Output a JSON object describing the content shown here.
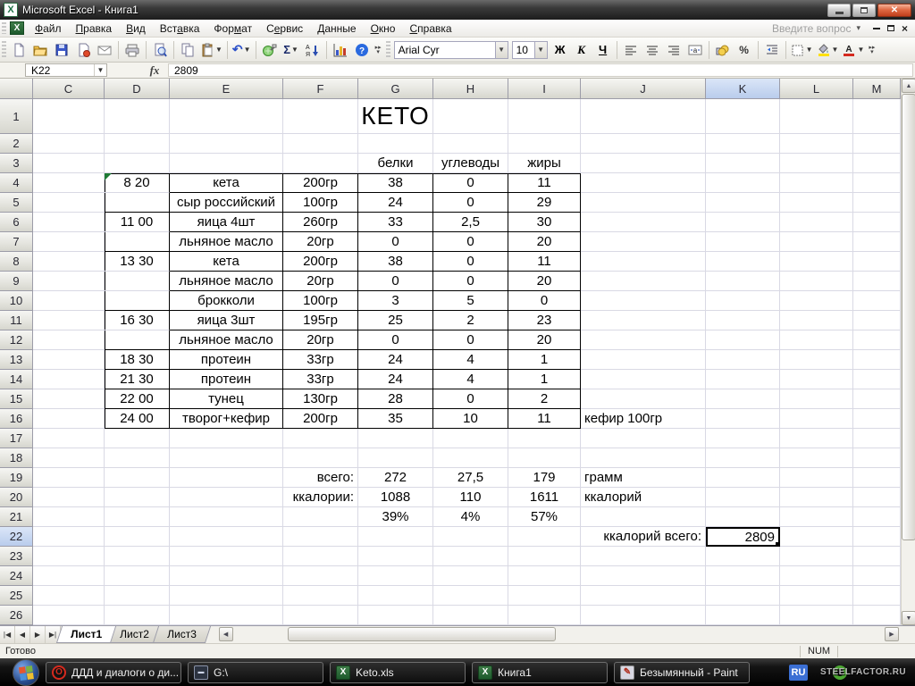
{
  "window": {
    "title": "Microsoft Excel - Книга1",
    "ask_placeholder": "Введите вопрос"
  },
  "menu": {
    "items": [
      "Файл",
      "Правка",
      "Вид",
      "Вставка",
      "Формат",
      "Сервис",
      "Данные",
      "Окно",
      "Справка"
    ]
  },
  "toolbar": {
    "standard_icons": [
      "new-document",
      "open",
      "save",
      "permission",
      "mail",
      "sep",
      "print",
      "sep",
      "print-preview",
      "sep",
      "copy",
      "paste+",
      "sep",
      "undo+",
      "sep",
      "hyperlink",
      "autosum+",
      "sort-descending",
      "sep",
      "chart-wizard",
      "help"
    ],
    "font_name": "Arial Cyr",
    "font_size": "10",
    "formatting_icons": [
      "bold",
      "italic",
      "underline",
      "sep",
      "align-left",
      "align-center",
      "align-right",
      "merge-center",
      "sep",
      "currency",
      "percent",
      "sep",
      "decrease-indent",
      "sep",
      "borders+",
      "fill-color+",
      "font-color+"
    ]
  },
  "formula_bar": {
    "name_box": "K22",
    "formula": "2809"
  },
  "sheet": {
    "column_letters": [
      "C",
      "D",
      "E",
      "F",
      "G",
      "H",
      "I",
      "J",
      "K",
      "L",
      "M"
    ],
    "selected_column": "K",
    "selected_row": 22,
    "row_count": 26,
    "title_cell": {
      "text": "КЕТО",
      "col": "G",
      "row": 1
    },
    "header_row3": {
      "G": "белки",
      "H": "углеводы",
      "I": "жиры"
    },
    "meals": [
      {
        "row": 4,
        "time": "8 20",
        "food": "кета",
        "qty": "200гр",
        "protein": "38",
        "carbs": "0",
        "fat": "11",
        "note": ""
      },
      {
        "row": 5,
        "time": "",
        "food": "сыр российский",
        "qty": "100гр",
        "protein": "24",
        "carbs": "0",
        "fat": "29",
        "note": ""
      },
      {
        "row": 6,
        "time": "11 00",
        "food": "яица 4шт",
        "qty": "260гр",
        "protein": "33",
        "carbs": "2,5",
        "fat": "30",
        "note": ""
      },
      {
        "row": 7,
        "time": "",
        "food": "льняное масло",
        "qty": "20гр",
        "protein": "0",
        "carbs": "0",
        "fat": "20",
        "note": ""
      },
      {
        "row": 8,
        "time": "13 30",
        "food": "кета",
        "qty": "200гр",
        "protein": "38",
        "carbs": "0",
        "fat": "11",
        "note": ""
      },
      {
        "row": 9,
        "time": "",
        "food": "льняное масло",
        "qty": "20гр",
        "protein": "0",
        "carbs": "0",
        "fat": "20",
        "note": ""
      },
      {
        "row": 10,
        "time": "",
        "food": "брокколи",
        "qty": "100гр",
        "protein": "3",
        "carbs": "5",
        "fat": "0",
        "note": ""
      },
      {
        "row": 11,
        "time": "16 30",
        "food": "яица 3шт",
        "qty": "195гр",
        "protein": "25",
        "carbs": "2",
        "fat": "23",
        "note": ""
      },
      {
        "row": 12,
        "time": "",
        "food": "льняное масло",
        "qty": "20гр",
        "protein": "0",
        "carbs": "0",
        "fat": "20",
        "note": ""
      },
      {
        "row": 13,
        "time": "18 30",
        "food": "протеин",
        "qty": "33гр",
        "protein": "24",
        "carbs": "4",
        "fat": "1",
        "note": ""
      },
      {
        "row": 14,
        "time": "21 30",
        "food": "протеин",
        "qty": "33гр",
        "protein": "24",
        "carbs": "4",
        "fat": "1",
        "note": ""
      },
      {
        "row": 15,
        "time": "22 00",
        "food": "тунец",
        "qty": "130гр",
        "protein": "28",
        "carbs": "0",
        "fat": "2",
        "note": ""
      },
      {
        "row": 16,
        "time": "24 00",
        "food": "творог+кефир",
        "qty": "200гр",
        "protein": "35",
        "carbs": "10",
        "fat": "11",
        "note": "кефир 100гр"
      }
    ],
    "totals": {
      "grams": {
        "row": 19,
        "label": "всего:",
        "protein": "272",
        "carbs": "27,5",
        "fat": "179",
        "unit": "грамм"
      },
      "calories": {
        "row": 20,
        "label": "ккалории:",
        "protein": "1088",
        "carbs": "110",
        "fat": "1611",
        "unit": "ккалорий"
      },
      "percent": {
        "row": 21,
        "protein": "39%",
        "carbs": "4%",
        "fat": "57%"
      },
      "grand": {
        "row": 22,
        "label": "ккалорий всего:",
        "value": "2809"
      }
    }
  },
  "sheet_tabs": {
    "items": [
      "Лист1",
      "Лист2",
      "Лист3"
    ],
    "active": "Лист1"
  },
  "status_bar": {
    "mode": "Готово",
    "num_lock": "NUM"
  },
  "taskbar": {
    "buttons": [
      {
        "icon": "opera-icon",
        "label": "ДДД и диалоги о ди..."
      },
      {
        "icon": "drive-icon",
        "label": "G:\\"
      },
      {
        "icon": "excel-icon",
        "label": "Keto.xls"
      },
      {
        "icon": "excel-icon",
        "label": "Книга1"
      },
      {
        "icon": "paint-icon",
        "label": "Безымянный - Paint"
      }
    ],
    "language": "RU",
    "watermark": "STEELFACTOR.RU"
  },
  "colors": {
    "close_button": "#c03e1c",
    "header_selection": "#b9ccec",
    "gridline": "#d9d9e4",
    "table_border": "#000000",
    "taskbar_bg": "#000000",
    "lang_badge": "#3b6fd4"
  }
}
